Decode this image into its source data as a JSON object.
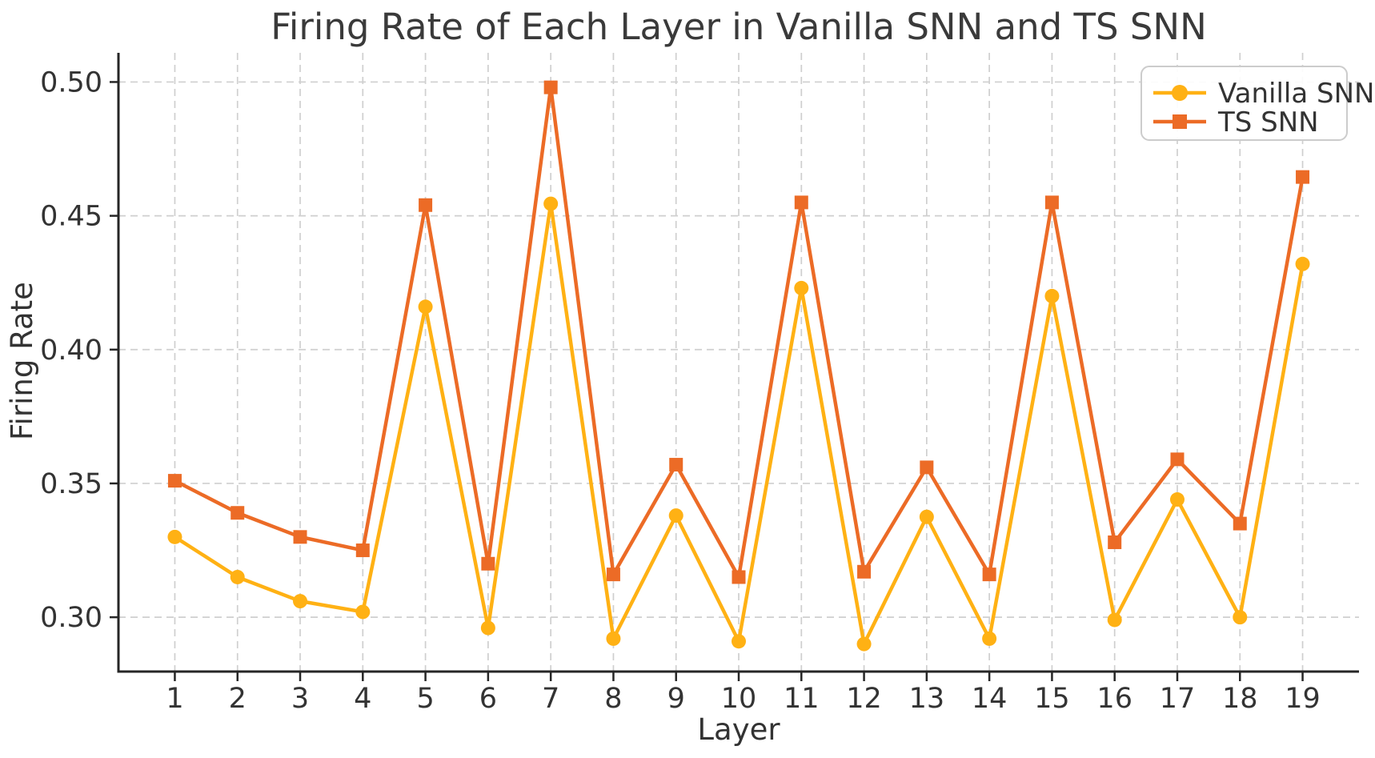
{
  "chart_data": {
    "type": "line",
    "title": "Firing Rate of Each Layer in Vanilla SNN and TS SNN",
    "xlabel": "Layer",
    "ylabel": "Firing Rate",
    "x": [
      1,
      2,
      3,
      4,
      5,
      6,
      7,
      8,
      9,
      10,
      11,
      12,
      13,
      14,
      15,
      16,
      17,
      18,
      19
    ],
    "series": [
      {
        "name": "Vanilla SNN",
        "marker": "circle",
        "color": "#FFB114",
        "values": [
          0.33,
          0.315,
          0.306,
          0.302,
          0.416,
          0.296,
          0.4545,
          0.292,
          0.338,
          0.291,
          0.423,
          0.29,
          0.3375,
          0.292,
          0.42,
          0.299,
          0.344,
          0.3,
          0.432
        ]
      },
      {
        "name": "TS SNN",
        "marker": "square",
        "color": "#EC6B26",
        "values": [
          0.351,
          0.339,
          0.33,
          0.325,
          0.454,
          0.32,
          0.498,
          0.316,
          0.357,
          0.315,
          0.455,
          0.317,
          0.356,
          0.316,
          0.455,
          0.328,
          0.359,
          0.335,
          0.4645
        ]
      }
    ],
    "xtick_labels": [
      "1",
      "2",
      "3",
      "4",
      "5",
      "6",
      "7",
      "8",
      "9",
      "10",
      "11",
      "12",
      "13",
      "14",
      "15",
      "16",
      "17",
      "18",
      "19"
    ],
    "yticks": [
      0.3,
      0.35,
      0.4,
      0.45,
      0.5
    ],
    "ytick_labels": [
      "0.30",
      "0.35",
      "0.40",
      "0.45",
      "0.50"
    ],
    "xlim": [
      0.1,
      19.9
    ],
    "ylim": [
      0.2797,
      0.5109
    ],
    "grid": true,
    "legend_position": "upper right",
    "colors": {
      "grid": "#cfcfcf",
      "axis": "#262626",
      "text": "#333333"
    }
  }
}
